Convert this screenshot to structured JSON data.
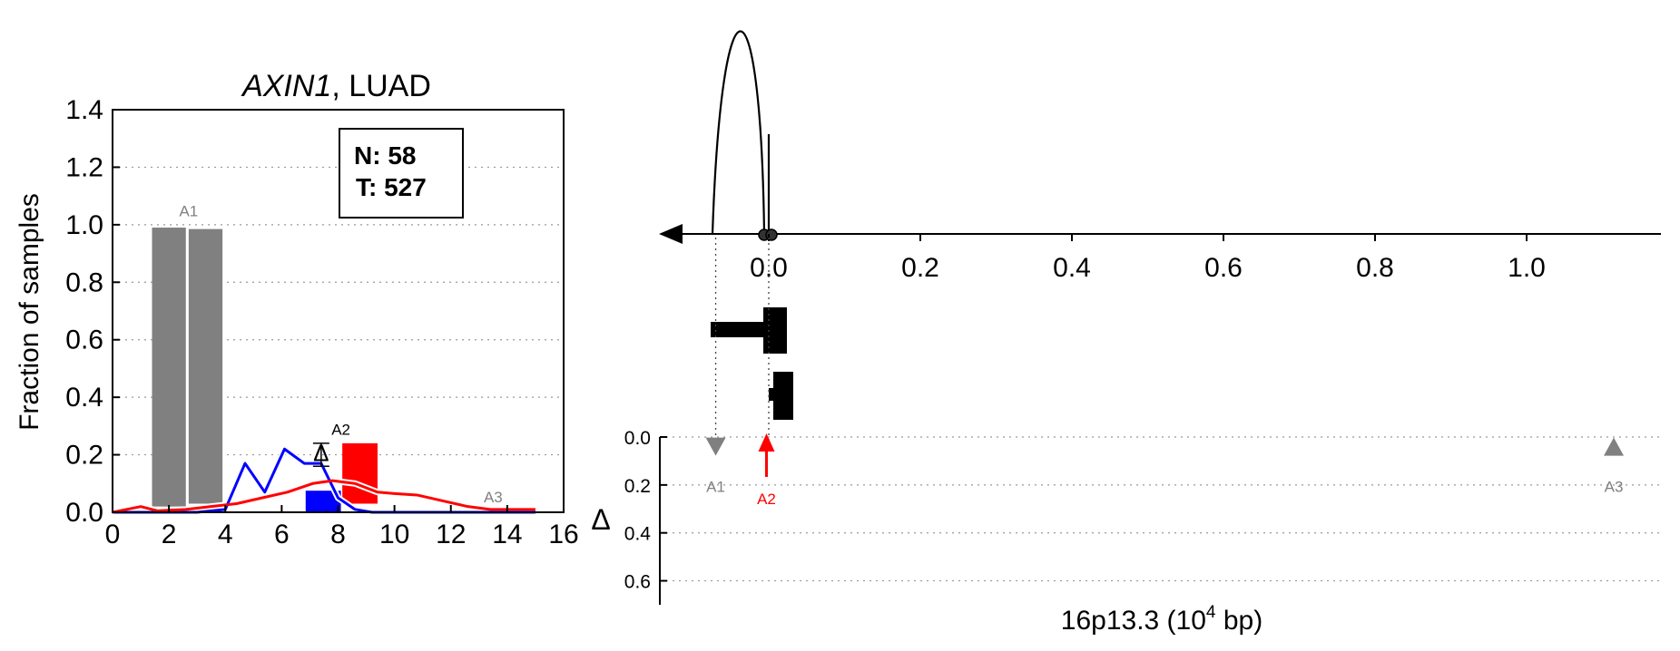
{
  "chart_data": [
    {
      "type": "bar",
      "title_gene": "AXIN1",
      "title_rest": ", LUAD",
      "ylabel": "Fraction of samples",
      "xlim": [
        0,
        16
      ],
      "ylim": [
        0,
        1.4
      ],
      "x_ticks": [
        "0",
        "2",
        "4",
        "6",
        "8",
        "10",
        "12",
        "14",
        "16"
      ],
      "y_ticks": [
        "0.0",
        "0.2",
        "0.4",
        "0.6",
        "0.8",
        "1.0",
        "1.2",
        "1.4"
      ],
      "grid": "horizontal dotted",
      "legend_box": {
        "n_label": "N: 58",
        "t_label": "T: 527"
      },
      "colors": {
        "gray": "#808080",
        "normal": "#0000ff",
        "tumor": "#ff0000"
      },
      "bars": [
        {
          "label": "A1",
          "x0": 1.4,
          "x1": 2.6,
          "bottom": 0.02,
          "top": 0.99,
          "color": "#808080"
        },
        {
          "label": "",
          "x0": 2.7,
          "x1": 3.9,
          "bottom": 0.03,
          "top": 0.985,
          "color": "#808080"
        },
        {
          "label": "",
          "x0": 6.85,
          "x1": 8.1,
          "bottom": 0.0,
          "top": 0.075,
          "color": "#0000ff"
        },
        {
          "label": "A2",
          "x0": 8.15,
          "x1": 9.4,
          "bottom": 0.03,
          "top": 0.24,
          "color": "#ff0000"
        }
      ],
      "bar_labels": [
        {
          "text": "A1",
          "x": 2.7,
          "y": 1.03,
          "color": "#808080"
        },
        {
          "text": "A2",
          "x": 8.1,
          "y": 0.27,
          "color": "#000000"
        },
        {
          "text": "A3",
          "x": 13.5,
          "y": 0.035,
          "color": "#808080"
        }
      ],
      "series": [
        {
          "name": "",
          "color": "#0000ff",
          "x": [
            0,
            1,
            2,
            3,
            4,
            4.7,
            5.4,
            6.1,
            6.8,
            7.4,
            8,
            8.6,
            9.2,
            10,
            12,
            14,
            15
          ],
          "y": [
            0,
            0,
            0,
            0,
            0.01,
            0.17,
            0.07,
            0.22,
            0.17,
            0.17,
            0.05,
            0.01,
            0,
            0,
            0,
            0,
            0
          ]
        },
        {
          "name": "",
          "color": "#ff0000",
          "x": [
            0,
            1,
            1.6,
            2.6,
            3.5,
            4.4,
            5.3,
            6.2,
            7.1,
            7.8,
            8.6,
            9.4,
            10,
            10.8,
            11.7,
            12.6,
            13.4,
            14.2,
            15
          ],
          "y": [
            0.0,
            0.02,
            0.005,
            0.01,
            0.02,
            0.03,
            0.05,
            0.07,
            0.1,
            0.11,
            0.1,
            0.07,
            0.065,
            0.06,
            0.04,
            0.02,
            0.01,
            0.01,
            0.01
          ]
        }
      ],
      "error_bar": {
        "x": 7.4,
        "center": 0.21,
        "low": 0.16,
        "high": 0.24,
        "marker": "Δ"
      }
    },
    {
      "type": "gene-track",
      "xlabel_main": "16p13.3 (10",
      "xlabel_exp": "4",
      "xlabel_end": " bp)",
      "x_ticks": [
        "0.0",
        "0.2",
        "0.4",
        "0.6",
        "0.8",
        "1.0"
      ],
      "x_tick_values": [
        0.0,
        0.2,
        0.4,
        0.6,
        0.8,
        1.0
      ],
      "xlim": [
        -0.22,
        1.18
      ],
      "delta_label": "Δ",
      "delta_ticks": [
        "0.0",
        "0.2",
        "0.4",
        "0.6"
      ],
      "delta_tick_values": [
        0.0,
        0.2,
        0.4,
        0.6
      ],
      "delta_lim": [
        0,
        0.7
      ],
      "markers": [
        {
          "label": "A1",
          "pos": -0.07,
          "delta": 0.04,
          "shape": "triangle-down",
          "color": "#808080"
        },
        {
          "label": "A2",
          "pos": -0.003,
          "delta": 0.0,
          "shape": "arrow-up",
          "color": "#ff0000"
        },
        {
          "label": "A3",
          "pos": 1.115,
          "delta": 0.04,
          "shape": "triangle-up",
          "color": "#808080"
        }
      ]
    }
  ]
}
